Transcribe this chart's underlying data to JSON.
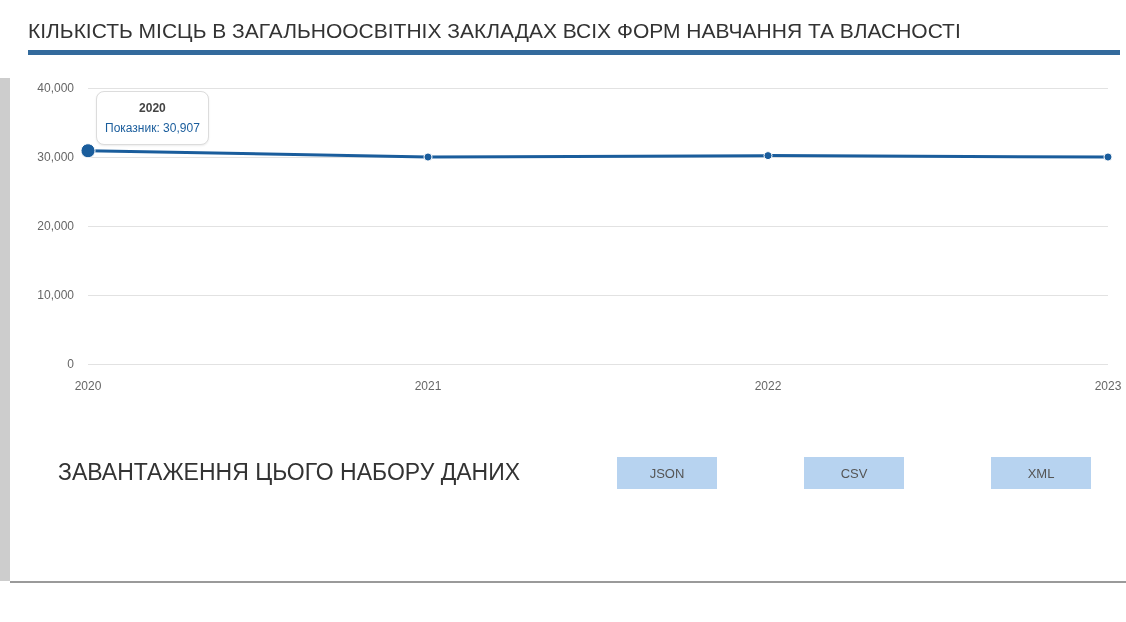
{
  "chart_data": [
    {
      "type": "line",
      "title": "КІЛЬКІСТЬ МІСЦЬ В ЗАГАЛЬНООСВІТНІХ ЗАКЛАДАХ ВСІХ ФОРМ НАВЧАННЯ ТА ВЛАСНОСТІ",
      "categories": [
        "2020",
        "2021",
        "2022",
        "2023"
      ],
      "series": [
        {
          "color": "#1a5d9c",
          "values": [
            30907,
            30000,
            30200,
            30000
          ]
        }
      ],
      "ylim": [
        0,
        40000
      ],
      "yticks": [
        {
          "value": 0,
          "label": "0"
        },
        {
          "value": 10000,
          "label": "10,000"
        },
        {
          "value": 20000,
          "label": "20,000"
        },
        {
          "value": 30000,
          "label": "30,000"
        },
        {
          "value": 40000,
          "label": "40,000"
        }
      ],
      "grid": "y",
      "marker": "circle",
      "annotations": [
        {
          "text": "Показник: 30,907",
          "x": "2020",
          "y": 30907
        }
      ]
    },
    {
      "type": "other",
      "title": "ЗАВАНТАЖЕННЯ ЦЬОГО НАБОРУ ДАНИХ",
      "annotations": [
        "JSON",
        "CSV",
        "XML"
      ]
    }
  ]
}
